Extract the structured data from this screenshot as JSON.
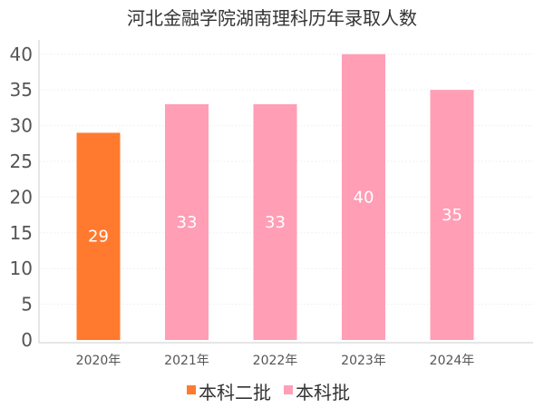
{
  "chart_data": {
    "type": "bar",
    "title": "河北金融学院湖南理科历年录取人数",
    "categories": [
      "2020年",
      "2021年",
      "2022年",
      "2023年",
      "2024年"
    ],
    "values": [
      29,
      33,
      33,
      40,
      35
    ],
    "bar_series": [
      "本科二批",
      "本科批",
      "本科批",
      "本科批",
      "本科批"
    ],
    "series": [
      {
        "name": "本科二批",
        "color": "#ff7a2f"
      },
      {
        "name": "本科批",
        "color": "#ff9eb5"
      }
    ],
    "ylim": [
      0,
      42
    ],
    "yticks": [
      0,
      5,
      10,
      15,
      20,
      25,
      30,
      35,
      40
    ],
    "xlabel": "",
    "ylabel": "",
    "grid": true,
    "legend_position": "bottom"
  }
}
